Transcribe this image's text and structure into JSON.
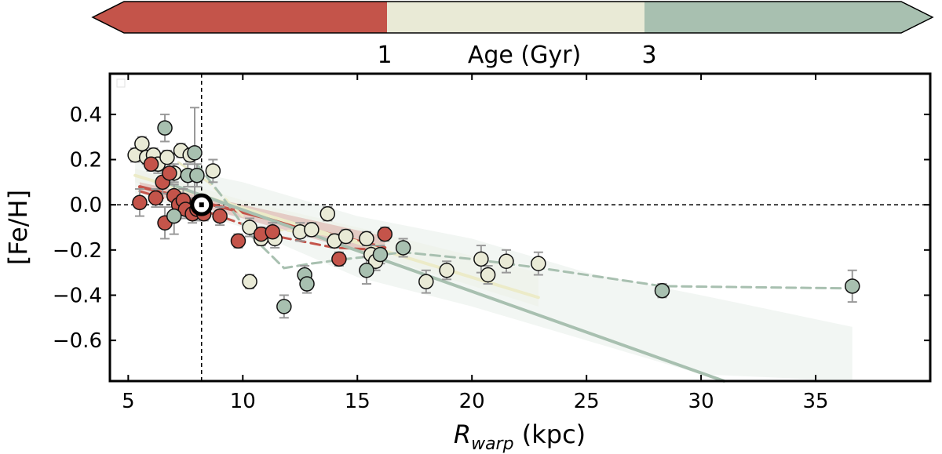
{
  "chart_data": {
    "type": "scatter",
    "xlabel_main": "R",
    "xlabel_sub": "warp",
    "xlabel_unit": " (kpc)",
    "ylabel": "[Fe/H]",
    "xlim": [
      4.2,
      40
    ],
    "ylim": [
      -0.78,
      0.58
    ],
    "x_ticks": [
      5,
      10,
      15,
      20,
      25,
      30,
      35
    ],
    "x_tick_labels": [
      "5",
      "10",
      "15",
      "20",
      "25",
      "30",
      "35"
    ],
    "y_ticks": [
      0.4,
      0.2,
      0.0,
      -0.2,
      -0.4,
      -0.6
    ],
    "y_tick_labels": [
      "0.4",
      "0.2",
      "0.0",
      "−0.2",
      "−0.4",
      "−0.6"
    ],
    "sun": {
      "x": 8.2,
      "y": 0.0
    },
    "colorbar": {
      "label": "Age (Gyr)",
      "tick_labels": [
        "1",
        "3"
      ],
      "colors": [
        "#c4544a",
        "#e9ead6",
        "#a8c0b0"
      ]
    },
    "colors": {
      "young": "#c4544a",
      "mid": "#e9ead6",
      "old": "#a8c0b0",
      "fit_mid": "#ecebc8"
    },
    "series": [
      {
        "name": "young",
        "color": "#c4544a",
        "x": [
          5.5,
          6.0,
          6.2,
          6.5,
          6.6,
          6.8,
          7.0,
          7.2,
          7.4,
          7.5,
          7.8,
          8.0,
          8.3,
          9.0,
          9.8,
          10.8,
          11.3,
          14.2,
          16.2
        ],
        "y": [
          0.01,
          0.18,
          0.03,
          0.1,
          -0.08,
          0.14,
          0.04,
          0.0,
          0.02,
          -0.02,
          -0.04,
          -0.02,
          -0.04,
          -0.05,
          -0.16,
          -0.13,
          -0.12,
          -0.24,
          -0.13
        ],
        "err": [
          0.06,
          0.03,
          0.04,
          0.05,
          0.07,
          0.04,
          0.05,
          0.04,
          0.05,
          0.04,
          0.04,
          0.05,
          0.03,
          0.04,
          0.03,
          0.03,
          0.04,
          0.03,
          0.03
        ]
      },
      {
        "name": "mid",
        "color": "#e9ead6",
        "x": [
          5.3,
          5.6,
          5.8,
          6.1,
          6.3,
          6.7,
          7.0,
          7.3,
          7.7,
          8.1,
          8.7,
          10.3,
          10.3,
          10.8,
          11.4,
          12.5,
          13.0,
          13.7,
          14.0,
          14.5,
          15.4,
          15.6,
          15.8,
          18.0,
          18.9,
          20.4,
          20.7,
          21.5,
          22.9
        ],
        "y": [
          0.22,
          0.27,
          0.21,
          0.22,
          0.18,
          0.21,
          0.14,
          0.24,
          0.22,
          -0.02,
          0.15,
          -0.34,
          -0.1,
          -0.15,
          -0.15,
          -0.12,
          -0.11,
          -0.04,
          -0.16,
          -0.14,
          -0.15,
          -0.22,
          -0.25,
          -0.34,
          -0.29,
          -0.24,
          -0.31,
          -0.25,
          -0.26
        ],
        "err": [
          0.03,
          0.03,
          0.03,
          0.03,
          0.04,
          0.03,
          0.04,
          0.03,
          0.03,
          0.04,
          0.05,
          0.03,
          0.04,
          0.03,
          0.04,
          0.04,
          0.03,
          0.03,
          0.03,
          0.03,
          0.03,
          0.04,
          0.04,
          0.05,
          0.04,
          0.06,
          0.04,
          0.05,
          0.05
        ]
      },
      {
        "name": "old",
        "color": "#a8c0b0",
        "x": [
          6.6,
          7.0,
          7.6,
          7.9,
          8.0,
          11.8,
          12.7,
          12.8,
          15.4,
          16.0,
          17.0,
          28.3,
          36.6
        ],
        "y": [
          0.34,
          -0.05,
          0.13,
          0.23,
          0.13,
          -0.45,
          -0.31,
          -0.35,
          -0.29,
          -0.22,
          -0.19,
          -0.38,
          -0.36
        ],
        "err": [
          0.06,
          0.08,
          0.05,
          0.2,
          0.05,
          0.05,
          0.04,
          0.04,
          0.06,
          0.04,
          0.04,
          0.03,
          0.07
        ]
      }
    ],
    "fits": [
      {
        "name": "young-fit",
        "color": "#c4544a",
        "style": "solid",
        "x": [
          5.5,
          16.2
        ],
        "y": [
          0.08,
          -0.19
        ]
      },
      {
        "name": "young-trend",
        "color": "#c4544a",
        "style": "dashed",
        "x": [
          5.5,
          7.5,
          9.0,
          11.5,
          14.0,
          16.2
        ],
        "y": [
          0.06,
          0.0,
          -0.05,
          -0.14,
          -0.19,
          -0.2
        ]
      },
      {
        "name": "mid-fit",
        "color": "#ecebc8",
        "style": "solid",
        "x": [
          5.3,
          22.9
        ],
        "y": [
          0.13,
          -0.41
        ]
      },
      {
        "name": "mid-trend",
        "color": "#ecebc8",
        "style": "dashed",
        "x": [
          5.3,
          7.0,
          8.5,
          10.5,
          13.5,
          16.0
        ],
        "y": [
          0.23,
          0.2,
          0.1,
          -0.1,
          -0.13,
          -0.18
        ]
      },
      {
        "name": "old-fit",
        "color": "#a8c0b0",
        "style": "solid",
        "x": [
          6.6,
          31.0
        ],
        "y": [
          0.1,
          -0.78
        ]
      },
      {
        "name": "old-trend",
        "color": "#a8c0b0",
        "style": "dashed",
        "x": [
          7.6,
          9.0,
          10.3,
          11.8,
          13.0,
          14.5,
          15.4,
          17.0,
          20.0,
          23.0,
          28.3,
          36.6
        ],
        "y": [
          0.23,
          0.05,
          -0.13,
          -0.28,
          -0.26,
          -0.24,
          -0.23,
          -0.21,
          -0.24,
          -0.28,
          -0.36,
          -0.37
        ]
      }
    ],
    "bands": [
      {
        "name": "old-band",
        "color": "#a8c0b0",
        "x": [
          5.3,
          10.0,
          15.0,
          20.0,
          25.0,
          30.0,
          36.6
        ],
        "upper": [
          0.2,
          0.1,
          -0.05,
          -0.15,
          -0.3,
          -0.4,
          -0.54
        ],
        "lower": [
          0.05,
          -0.1,
          -0.32,
          -0.45,
          -0.6,
          -0.75,
          -0.78
        ]
      },
      {
        "name": "mid-band",
        "color": "#e9ead6",
        "x": [
          5.3,
          10.0,
          15.0,
          22.9
        ],
        "upper": [
          0.16,
          0.02,
          -0.1,
          -0.3
        ],
        "lower": [
          0.1,
          -0.04,
          -0.2,
          -0.45
        ]
      },
      {
        "name": "young-band",
        "color": "#c4544a",
        "x": [
          5.5,
          10.0,
          16.2
        ],
        "upper": [
          0.1,
          0.0,
          -0.14
        ],
        "lower": [
          0.06,
          -0.06,
          -0.24
        ]
      }
    ]
  }
}
